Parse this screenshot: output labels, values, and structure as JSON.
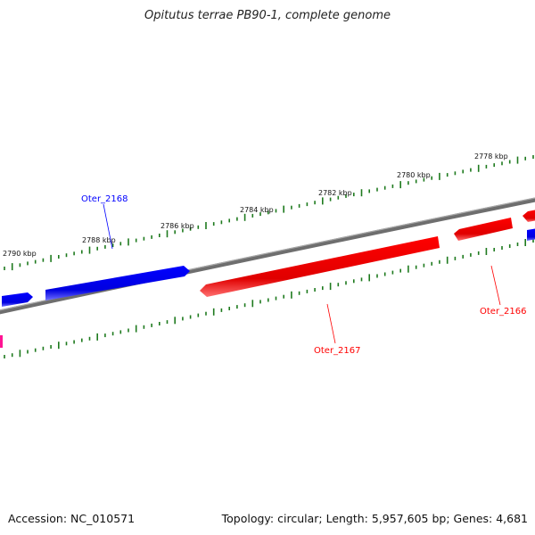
{
  "title": "Opitutus terrae PB90-1, complete genome",
  "footer": {
    "accession": "Accession: NC_010571",
    "summary": "Topology: circular; Length: 5,957,605 bp; Genes: 4,681"
  },
  "colors": {
    "forward_strand": "#0000ff",
    "reverse_strand": "#ff0000",
    "backbone": "#808080",
    "ticks": "#1e7a1e",
    "partial_feature": "#ff1493"
  },
  "scale": {
    "tick_labels": [
      "2778 kbp",
      "2780 kbp",
      "2782 kbp",
      "2784 kbp",
      "2786 kbp",
      "2788 kbp",
      "2790 kbp"
    ]
  },
  "genes": [
    {
      "name": "Oter_2168",
      "strand": "forward"
    },
    {
      "name": "Oter_2167",
      "strand": "reverse"
    },
    {
      "name": "Oter_2166",
      "strand": "reverse"
    }
  ]
}
